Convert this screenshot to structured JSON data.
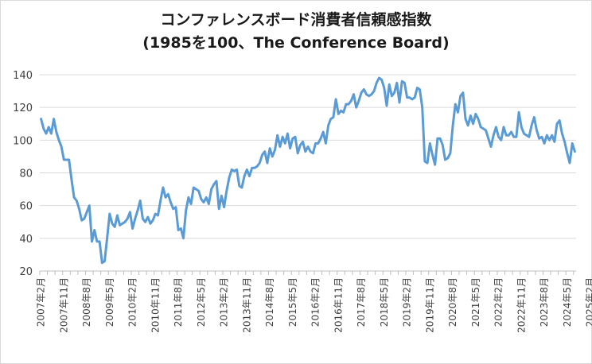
{
  "chart_data": {
    "type": "line",
    "title": "コンファレンスボード消費者信頼感指数",
    "subtitle": "(1985を100、The Conference Board)",
    "xlabel": "",
    "ylabel": "",
    "ylim": [
      20,
      140
    ],
    "yticks": [
      20,
      40,
      60,
      80,
      100,
      120,
      140
    ],
    "grid": "horizontal",
    "legend": "none",
    "line_color": "#5b9bd5",
    "x_tick_labels": [
      "2007年2月",
      "2007年11月",
      "2008年8月",
      "2009年5月",
      "2010年2月",
      "2010年11月",
      "2011年8月",
      "2012年5月",
      "2013年2月",
      "2013年11月",
      "2014年8月",
      "2015年5月",
      "2016年2月",
      "2016年11月",
      "2017年8月",
      "2018年5月",
      "2019年2月",
      "2019年11月",
      "2020年8月",
      "2021年5月",
      "2022年2月",
      "2022年11月",
      "2023年8月",
      "2024年5月",
      "2025年2月"
    ],
    "x_start": "2007年2月",
    "values": [
      113,
      107,
      104,
      108,
      104,
      113,
      105,
      100,
      96,
      88,
      88,
      88,
      76,
      65,
      63,
      58,
      51,
      52,
      56,
      60,
      38,
      45,
      38,
      38,
      25,
      26,
      40,
      55,
      49,
      47,
      54,
      48,
      49,
      50,
      52,
      56,
      46,
      52,
      57,
      63,
      52,
      50,
      53,
      49,
      51,
      55,
      54,
      63,
      71,
      65,
      67,
      62,
      58,
      59,
      45,
      46,
      40,
      57,
      65,
      61,
      71,
      70,
      69,
      64,
      62,
      65,
      61,
      70,
      73,
      75,
      58,
      66,
      59,
      69,
      77,
      82,
      81,
      82,
      72,
      71,
      78,
      82,
      78,
      83,
      83,
      84,
      86,
      91,
      93,
      86,
      95,
      90,
      94,
      103,
      96,
      102,
      98,
      104,
      95,
      101,
      102,
      92,
      97,
      99,
      93,
      96,
      93,
      92,
      98,
      98,
      101,
      105,
      98,
      109,
      113,
      114,
      125,
      116,
      118,
      117,
      122,
      122,
      124,
      128,
      120,
      124,
      129,
      131,
      128,
      127,
      128,
      130,
      135,
      138,
      137,
      132,
      121,
      134,
      127,
      129,
      135,
      123,
      136,
      135,
      126,
      126,
      125,
      126,
      132,
      131,
      120,
      87,
      86,
      98,
      91,
      85,
      101,
      101,
      97,
      88,
      89,
      92,
      109,
      122,
      117,
      127,
      129,
      113,
      109,
      115,
      110,
      116,
      113,
      108,
      107,
      106,
      101,
      96,
      103,
      108,
      102,
      100,
      108,
      103,
      103,
      105,
      102,
      102,
      117,
      108,
      104,
      103,
      102,
      109,
      114,
      106,
      101,
      102,
      98,
      103,
      100,
      103,
      99,
      110,
      112,
      104,
      99,
      92,
      86,
      98,
      93
    ]
  }
}
